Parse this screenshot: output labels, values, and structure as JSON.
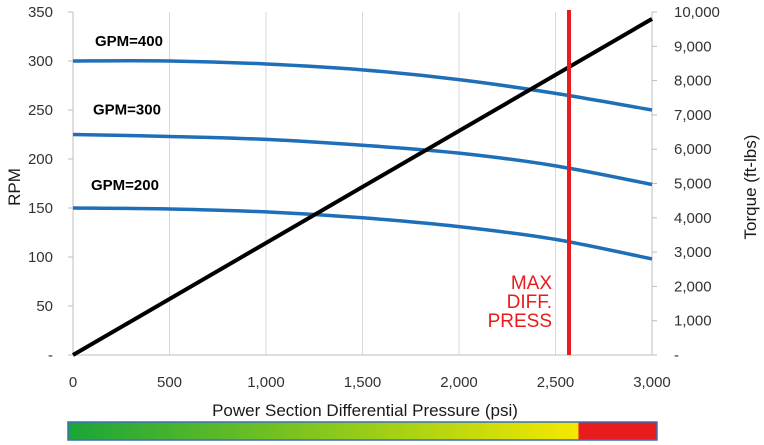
{
  "chart_data": {
    "type": "line",
    "xlabel": "Power Section Differential Pressure (psi)",
    "ylabel": "RPM",
    "y2label": "Torque (ft-lbs)",
    "xlim": [
      0,
      3000
    ],
    "ylim": [
      0,
      350
    ],
    "y2lim": [
      0,
      10000
    ],
    "x_ticks": [
      "0",
      "500",
      "1,000",
      "1,500",
      "2,000",
      "2,500",
      "3,000"
    ],
    "y_ticks": [
      "-",
      "50",
      "100",
      "150",
      "200",
      "250",
      "300",
      "350"
    ],
    "y2_ticks": [
      "-",
      "1,000",
      "2,000",
      "3,000",
      "4,000",
      "5,000",
      "6,000",
      "7,000",
      "8,000",
      "9,000",
      "10,000"
    ],
    "grid": "vertical",
    "series": [
      {
        "name": "GPM=400",
        "axis": "left",
        "color": "#1f6fb8",
        "x": [
          0,
          500,
          1000,
          1500,
          2000,
          2500,
          3000
        ],
        "y": [
          300,
          300,
          297,
          291,
          281,
          267,
          250
        ]
      },
      {
        "name": "GPM=300",
        "axis": "left",
        "color": "#1f6fb8",
        "x": [
          0,
          500,
          1000,
          1500,
          2000,
          2500,
          3000
        ],
        "y": [
          225,
          223,
          220,
          214,
          206,
          193,
          174
        ]
      },
      {
        "name": "GPM=200",
        "axis": "left",
        "color": "#1f6fb8",
        "x": [
          0,
          500,
          1000,
          1500,
          2000,
          2500,
          3000
        ],
        "y": [
          150,
          149,
          146,
          140,
          131,
          118,
          98
        ]
      },
      {
        "name": "",
        "axis": "right",
        "color": "#000000",
        "x": [
          0,
          3000
        ],
        "y": [
          0,
          9800
        ]
      }
    ],
    "annotation": {
      "lines": [
        "MAX",
        "DIFF.",
        "PRESS"
      ],
      "x": 2570,
      "color": "#e81c1c"
    },
    "colorbar": {
      "colors": [
        "#1aa53a",
        "#f4e800",
        "#e81c1c"
      ],
      "red_start": 2600,
      "border": "#3a6fb8"
    }
  }
}
